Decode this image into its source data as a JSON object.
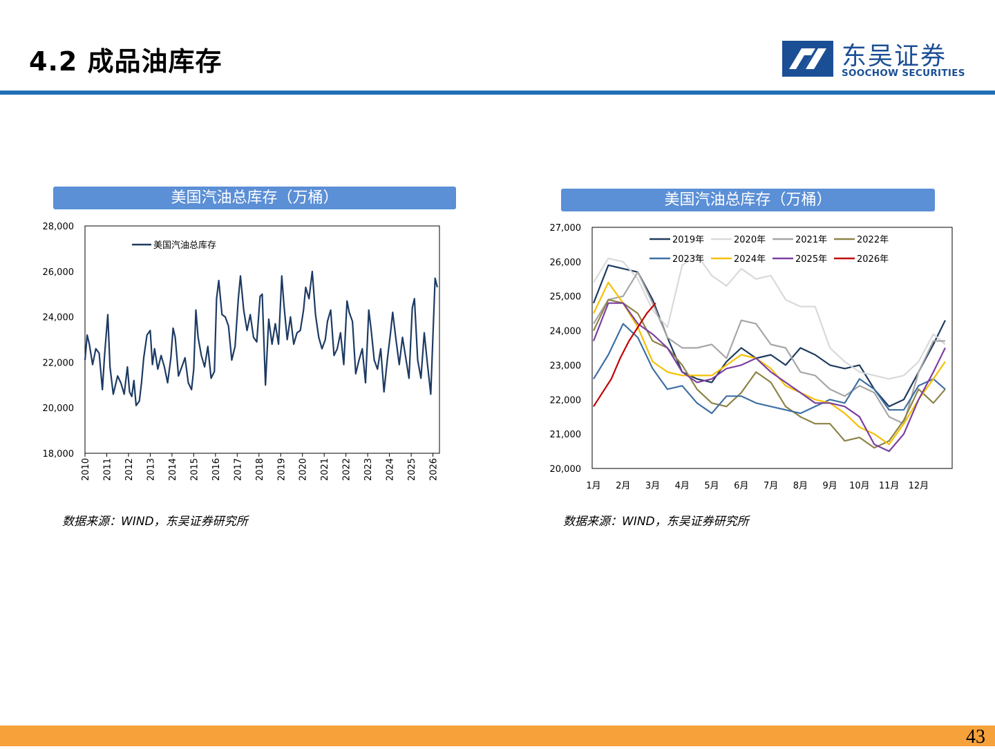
{
  "header": {
    "title": "4.2 成品油库存",
    "logo_cn": "东吴证券",
    "logo_en": "SOOCHOW SECURITIES"
  },
  "footer": {
    "page_number": "43"
  },
  "colors": {
    "header_rule": "#1f6fb8",
    "banner": "#5b8fd6",
    "footer": "#f7a13a",
    "brand": "#1b4f95"
  },
  "chart_data": [
    {
      "type": "line",
      "banner": "美国汽油总库存（万桶）",
      "source": "数据来源：WIND，东吴证券研究所",
      "ylim": [
        18000,
        28000
      ],
      "yticks": [
        "28,000",
        "26,000",
        "24,000",
        "22,000",
        "20,000",
        "18,000"
      ],
      "ytick_values": [
        28000,
        26000,
        24000,
        22000,
        20000,
        18000
      ],
      "xlim": [
        2010,
        2026.3
      ],
      "xticks": [
        "2010",
        "2011",
        "2012",
        "2013",
        "2014",
        "2015",
        "2016",
        "2017",
        "2018",
        "2019",
        "2020",
        "2021",
        "2022",
        "2023",
        "2024",
        "2025",
        "2026"
      ],
      "series": [
        {
          "name": "美国汽油总库存",
          "color": "#1c3a63",
          "x": [
            2010.0,
            2010.1,
            2010.2,
            2010.35,
            2010.5,
            2010.65,
            2010.8,
            2010.9,
            2011.05,
            2011.15,
            2011.3,
            2011.5,
            2011.65,
            2011.8,
            2011.95,
            2012.05,
            2012.15,
            2012.25,
            2012.35,
            2012.5,
            2012.6,
            2012.7,
            2012.85,
            2013.0,
            2013.1,
            2013.2,
            2013.35,
            2013.5,
            2013.65,
            2013.8,
            2013.95,
            2014.05,
            2014.15,
            2014.3,
            2014.45,
            2014.6,
            2014.75,
            2014.9,
            2015.0,
            2015.1,
            2015.2,
            2015.35,
            2015.5,
            2015.65,
            2015.8,
            2015.95,
            2016.05,
            2016.15,
            2016.3,
            2016.45,
            2016.6,
            2016.75,
            2016.9,
            2017.05,
            2017.15,
            2017.3,
            2017.45,
            2017.6,
            2017.75,
            2017.9,
            2018.05,
            2018.15,
            2018.3,
            2018.45,
            2018.6,
            2018.75,
            2018.9,
            2019.05,
            2019.15,
            2019.3,
            2019.45,
            2019.6,
            2019.75,
            2019.9,
            2020.05,
            2020.15,
            2020.3,
            2020.45,
            2020.6,
            2020.75,
            2020.9,
            2021.05,
            2021.15,
            2021.3,
            2021.45,
            2021.6,
            2021.75,
            2021.9,
            2022.05,
            2022.15,
            2022.3,
            2022.45,
            2022.6,
            2022.75,
            2022.9,
            2023.05,
            2023.15,
            2023.3,
            2023.45,
            2023.6,
            2023.75,
            2023.9,
            2024.05,
            2024.15,
            2024.3,
            2024.45,
            2024.6,
            2024.75,
            2024.9,
            2025.05,
            2025.15,
            2025.3,
            2025.45,
            2025.6,
            2025.75,
            2025.9,
            2026.0,
            2026.1,
            2026.2
          ],
          "values": [
            22100,
            23200,
            22800,
            21900,
            22600,
            22400,
            20800,
            22300,
            24100,
            21800,
            20600,
            21400,
            21100,
            20600,
            21800,
            20700,
            20500,
            21200,
            20100,
            20300,
            21100,
            22200,
            23200,
            23400,
            21900,
            22600,
            21700,
            22300,
            21800,
            21100,
            22200,
            23500,
            23100,
            21400,
            21800,
            22200,
            21100,
            20800,
            21700,
            24300,
            23100,
            22300,
            21800,
            22700,
            21300,
            21600,
            24800,
            25600,
            24100,
            24000,
            23600,
            22100,
            22700,
            24800,
            25800,
            24300,
            23400,
            24100,
            23100,
            22900,
            24900,
            25000,
            21000,
            23900,
            22800,
            23700,
            22800,
            25800,
            24500,
            23000,
            24000,
            22800,
            23300,
            23400,
            24300,
            25300,
            24800,
            26000,
            24100,
            23100,
            22600,
            23000,
            23800,
            24300,
            22300,
            22600,
            23300,
            21900,
            24700,
            24200,
            23800,
            21500,
            22100,
            22600,
            21100,
            24300,
            23500,
            22100,
            21700,
            22600,
            20700,
            22100,
            23300,
            24200,
            23000,
            21900,
            23100,
            22200,
            21300,
            24400,
            24800,
            22100,
            21300,
            23300,
            21900,
            20600,
            23200,
            25700,
            25300
          ]
        }
      ]
    },
    {
      "type": "line",
      "banner": "美国汽油总库存（万桶）",
      "source": "数据来源：WIND，东吴证券研究所",
      "ylim": [
        20000,
        27000
      ],
      "yticks": [
        "27,000",
        "26,000",
        "25,000",
        "24,000",
        "23,000",
        "22,000",
        "21,000",
        "20,000"
      ],
      "ytick_values": [
        27000,
        26000,
        25000,
        24000,
        23000,
        22000,
        21000,
        20000
      ],
      "categories": [
        "1月",
        "2月",
        "3月",
        "4月",
        "5月",
        "6月",
        "7月",
        "8月",
        "9月",
        "10月",
        "11月",
        "12月"
      ],
      "series": [
        {
          "name": "2019年",
          "color": "#1e3a5f",
          "width": 2.2,
          "x": [
            0,
            0.5,
            1,
            1.5,
            2,
            2.5,
            3,
            3.5,
            4,
            4.5,
            5,
            5.5,
            6,
            6.5,
            7,
            7.5,
            8,
            8.5,
            9,
            9.5,
            10,
            10.5,
            11,
            11.5,
            11.9
          ],
          "values": [
            24800,
            25900,
            25800,
            25700,
            24900,
            23800,
            22800,
            22600,
            22500,
            23100,
            23500,
            23200,
            23300,
            23000,
            23500,
            23300,
            23000,
            22900,
            23000,
            22300,
            21800,
            22000,
            22800,
            23600,
            24300
          ]
        },
        {
          "name": "2020年",
          "color": "#d9d9d9",
          "width": 2.2,
          "x": [
            0,
            0.5,
            1,
            1.5,
            2,
            2.5,
            3,
            3.5,
            4,
            4.5,
            5,
            5.5,
            6,
            6.5,
            7,
            7.5,
            8,
            8.5,
            9,
            9.5,
            10,
            10.5,
            11,
            11.5,
            11.9
          ],
          "values": [
            25400,
            26100,
            26000,
            25500,
            24600,
            24100,
            25900,
            26200,
            25600,
            25300,
            25800,
            25500,
            25600,
            24900,
            24700,
            24700,
            23500,
            23100,
            22800,
            22700,
            22600,
            22700,
            23100,
            23900,
            23600
          ]
        },
        {
          "name": "2021年",
          "color": "#a6a6a6",
          "width": 2.2,
          "x": [
            0,
            0.5,
            1,
            1.5,
            2,
            2.5,
            3,
            3.5,
            4,
            4.5,
            5,
            5.5,
            6,
            6.5,
            7,
            7.5,
            8,
            8.5,
            9,
            9.5,
            10,
            10.5,
            11,
            11.5,
            11.9
          ],
          "values": [
            24200,
            24900,
            25000,
            25700,
            24800,
            23800,
            23500,
            23500,
            23600,
            23200,
            24300,
            24200,
            23600,
            23500,
            22800,
            22700,
            22300,
            22100,
            22400,
            22200,
            21500,
            21300,
            22800,
            23700,
            23700
          ]
        },
        {
          "name": "2022年",
          "color": "#8c8348",
          "width": 2.2,
          "x": [
            0,
            0.5,
            1,
            1.5,
            2,
            2.5,
            3,
            3.5,
            4,
            4.5,
            5,
            5.5,
            6,
            6.5,
            7,
            7.5,
            8,
            8.5,
            9,
            9.5,
            10,
            10.5,
            11,
            11.5,
            11.9
          ],
          "values": [
            24000,
            24900,
            24800,
            24500,
            23700,
            23500,
            23000,
            22300,
            21900,
            21800,
            22200,
            22800,
            22500,
            21800,
            21500,
            21300,
            21300,
            20800,
            20900,
            20600,
            20800,
            21400,
            22300,
            21900,
            22300
          ]
        },
        {
          "name": "2023年",
          "color": "#3e6fa3",
          "width": 2.2,
          "x": [
            0,
            0.5,
            1,
            1.5,
            2,
            2.5,
            3,
            3.5,
            4,
            4.5,
            5,
            5.5,
            6,
            6.5,
            7,
            7.5,
            8,
            8.5,
            9,
            9.5,
            10,
            10.5,
            11,
            11.5,
            11.9
          ],
          "values": [
            22600,
            23300,
            24200,
            23800,
            22900,
            22300,
            22400,
            21900,
            21600,
            22100,
            22100,
            21900,
            21800,
            21700,
            21600,
            21800,
            22000,
            21900,
            22600,
            22300,
            21700,
            21700,
            22400,
            22600,
            22300
          ]
        },
        {
          "name": "2024年",
          "color": "#f5c000",
          "width": 2.2,
          "x": [
            0,
            0.5,
            1,
            1.5,
            2,
            2.5,
            3,
            3.5,
            4,
            4.5,
            5,
            5.5,
            6,
            6.5,
            7,
            7.5,
            8,
            8.5,
            9,
            9.5,
            10,
            10.5,
            11,
            11.5,
            11.9
          ],
          "values": [
            24500,
            25400,
            24800,
            24100,
            23100,
            22800,
            22700,
            22700,
            22700,
            23000,
            23300,
            23200,
            22900,
            22400,
            22200,
            22000,
            21900,
            21600,
            21200,
            21000,
            20700,
            21300,
            22000,
            22600,
            23100
          ]
        },
        {
          "name": "2025年",
          "color": "#7b3fa0",
          "width": 2.2,
          "x": [
            0,
            0.5,
            1,
            1.5,
            2,
            2.5,
            3,
            3.5,
            4,
            4.5,
            5,
            5.5,
            6,
            6.5,
            7,
            7.5,
            8,
            8.5,
            9,
            9.5,
            10,
            10.5,
            11,
            11.5,
            11.9
          ],
          "values": [
            23700,
            24800,
            24800,
            24200,
            23900,
            23500,
            22800,
            22500,
            22600,
            22900,
            23000,
            23200,
            22800,
            22500,
            22200,
            21900,
            21900,
            21800,
            21500,
            20700,
            20500,
            21000,
            22000,
            22800,
            23500
          ]
        },
        {
          "name": "2026年",
          "color": "#c00000",
          "width": 2.2,
          "x": [
            0,
            0.3,
            0.6,
            0.9,
            1.2,
            1.5,
            1.8,
            2.1
          ],
          "values": [
            21800,
            22200,
            22600,
            23200,
            23700,
            24100,
            24500,
            24800
          ]
        }
      ]
    }
  ]
}
